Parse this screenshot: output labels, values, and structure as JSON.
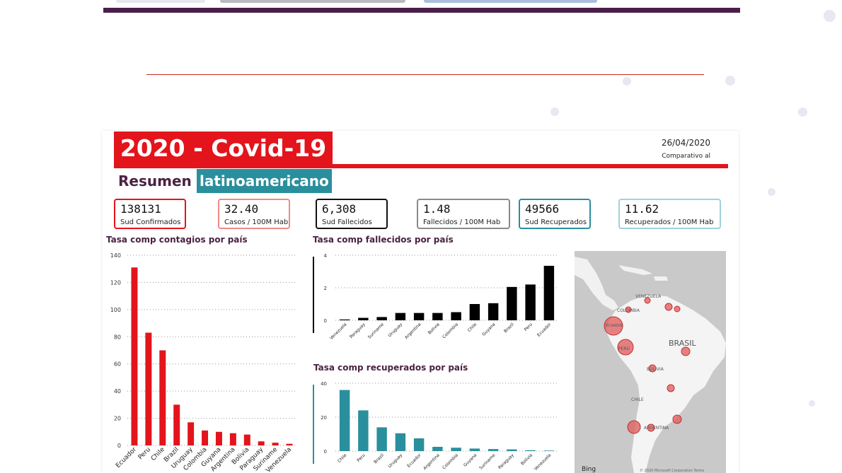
{
  "report": {
    "title": "2020 - Covid-19",
    "date": "26/04/2020",
    "compare_label": "Comparativo al",
    "subtitle_word": "Resumen",
    "subtitle_highlight": "latinoamericano"
  },
  "kpis": [
    {
      "value": "138131",
      "label": "Sud Confirmados",
      "color": "#e3141c"
    },
    {
      "value": "32.40",
      "label": "Casos / 100M Hab",
      "color": "#ee8a8a"
    },
    {
      "value": "6,308",
      "label": "Sud Fallecidos",
      "color": "#111111"
    },
    {
      "value": "1.48",
      "label": "Fallecidos / 100M Hab",
      "color": "#8a8a8a"
    },
    {
      "value": "49566",
      "label": "Sud Recuperados",
      "color": "#2a8f9d"
    },
    {
      "value": "11.62",
      "label": "Recuperados / 100M Hab",
      "color": "#9fd3d9"
    }
  ],
  "chart_data": [
    {
      "type": "bar",
      "title": "Tasa comp contagios por país",
      "categories": [
        "Ecuador",
        "Peru",
        "Chile",
        "Brazil",
        "Uruguay",
        "Colombia",
        "Guyana",
        "Argentina",
        "Bolivia",
        "Paraguay",
        "Suriname",
        "Venezuela"
      ],
      "values": [
        131,
        83,
        70,
        30,
        17,
        11,
        10,
        9,
        8,
        3,
        2,
        1.2
      ],
      "yticks": [
        0,
        20,
        40,
        60,
        80,
        100,
        120,
        140
      ],
      "ylim": [
        0,
        140
      ],
      "grid": true,
      "color": "#e3141c"
    },
    {
      "type": "bar",
      "title": "Tasa comp fallecidos por país",
      "categories": [
        "Venezuela",
        "Paraguay",
        "Suriname",
        "Uruguay",
        "Argentina",
        "Bolivia",
        "Colombia",
        "Chile",
        "Guyana",
        "Brazil",
        "Peru",
        "Ecuador"
      ],
      "values": [
        0.05,
        0.15,
        0.2,
        0.45,
        0.45,
        0.45,
        0.5,
        1.0,
        1.05,
        2.05,
        2.2,
        3.35
      ],
      "yticks": [
        0,
        2,
        4
      ],
      "ylim": [
        0,
        4
      ],
      "grid": true,
      "color": "#000000"
    },
    {
      "type": "bar",
      "title": "Tasa comp recuperados por país",
      "categories": [
        "Chile",
        "Peru",
        "Brazil",
        "Uruguay",
        "Ecuador",
        "Argentina",
        "Colombia",
        "Guyana",
        "Suriname",
        "Paraguay",
        "Bolivia",
        "Venezuela"
      ],
      "values": [
        36,
        24,
        14,
        10.5,
        7.5,
        2.5,
        2,
        1.5,
        1.2,
        1,
        0.5,
        0.3
      ],
      "yticks": [
        0,
        20,
        40
      ],
      "ylim": [
        0,
        40
      ],
      "grid": true,
      "color": "#2a8f9d"
    }
  ],
  "map": {
    "labels": {
      "venezuela": "VENEZUELA",
      "colombia": "COLOMBIA",
      "brasil": "BRASIL",
      "chile": "CHILE",
      "argentina": "ARGENTINA",
      "bolivia": "BOLIVIA",
      "ecuador": "ECUADOR",
      "peru": "PERÚ"
    },
    "bing": "Bing",
    "copyright": "© 2020 Microsoft Corporation Terms",
    "bubble_color": "#e05a5a"
  }
}
